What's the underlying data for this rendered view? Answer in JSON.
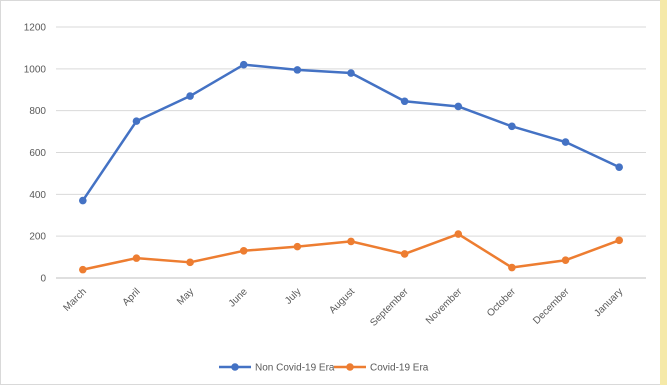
{
  "chart_data": {
    "type": "line",
    "title": "",
    "xlabel": "",
    "ylabel": "",
    "ylim": [
      0,
      1200
    ],
    "yticks": [
      0,
      200,
      400,
      600,
      800,
      1000,
      1200
    ],
    "categories": [
      "March",
      "April",
      "May",
      "June",
      "July",
      "August",
      "September",
      "November",
      "October",
      "December",
      "January"
    ],
    "series": [
      {
        "name": "Non Covid-19 Era",
        "color": "#4472c4",
        "values": [
          370,
          750,
          870,
          1020,
          995,
          980,
          845,
          820,
          725,
          650,
          530
        ]
      },
      {
        "name": "Covid-19 Era",
        "color": "#ed7d31",
        "values": [
          40,
          95,
          75,
          130,
          150,
          175,
          115,
          210,
          50,
          85,
          180
        ]
      }
    ],
    "grid": true,
    "legend": "bottom"
  }
}
